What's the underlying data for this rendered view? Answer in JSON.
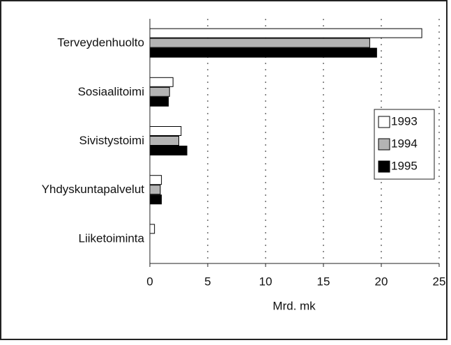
{
  "chart_data": {
    "type": "hbar",
    "categories": [
      "Terveydenhuolto",
      "Sosiaalitoimi",
      "Sivistystoimi",
      "Yhdyskuntapalvelut",
      "Liiketoiminta"
    ],
    "series": [
      {
        "name": "1993",
        "color": "#ffffff",
        "values": [
          23.5,
          2.0,
          2.7,
          1.0,
          0.4
        ]
      },
      {
        "name": "1994",
        "color": "#b4b4b4",
        "values": [
          19.0,
          1.7,
          2.5,
          0.9,
          0
        ]
      },
      {
        "name": "1995",
        "color": "#000000",
        "values": [
          19.6,
          1.6,
          3.2,
          1.0,
          0
        ]
      }
    ],
    "xlabel": "Mrd. mk",
    "xlim": [
      0,
      25
    ],
    "xticks": [
      0,
      5,
      10,
      15,
      20,
      25
    ],
    "grid": true,
    "legend": "right"
  }
}
